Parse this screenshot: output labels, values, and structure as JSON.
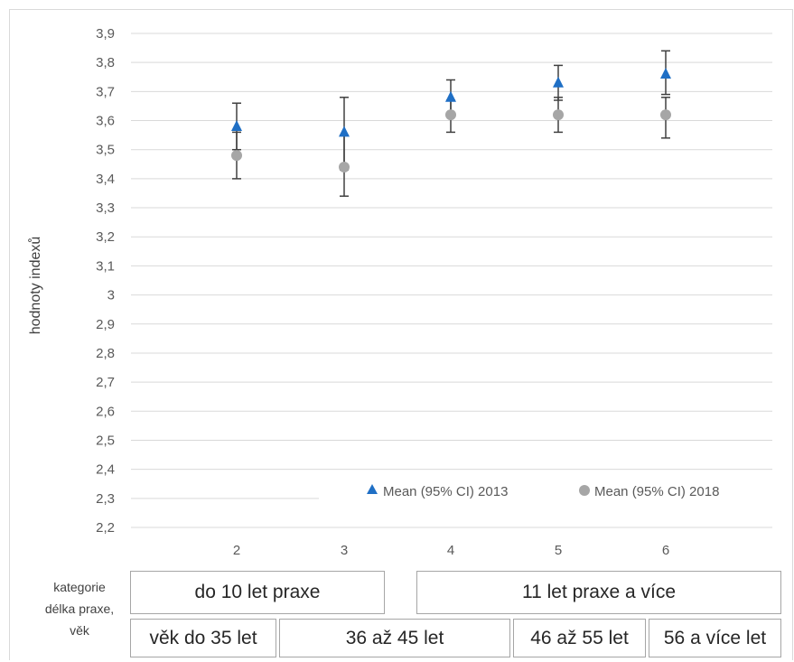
{
  "chart_data": {
    "type": "scatter",
    "ylabel": "hodnoty indexů",
    "ylim": [
      2.2,
      3.9
    ],
    "yticks": [
      "3,9",
      "3,8",
      "3,7",
      "3,6",
      "3,5",
      "3,4",
      "3,3",
      "3,2",
      "3,1",
      "3",
      "2,9",
      "2,8",
      "2,7",
      "2,6",
      "2,5",
      "2,4",
      "2,3",
      "2,2"
    ],
    "x": [
      2,
      3,
      4,
      5,
      6
    ],
    "xticks": [
      "2",
      "3",
      "4",
      "5",
      "6"
    ],
    "grid": true,
    "legend_position": "bottom-right",
    "series": [
      {
        "name": "Mean (95% CI) 2013",
        "marker": "triangle",
        "color": "#1f6fc5",
        "values": [
          3.58,
          3.56,
          3.68,
          3.73,
          3.76
        ],
        "ci_low": [
          3.5,
          3.43,
          3.62,
          3.67,
          3.69
        ],
        "ci_high": [
          3.66,
          3.68,
          3.74,
          3.79,
          3.84
        ]
      },
      {
        "name": "Mean (95% CI) 2018",
        "marker": "circle",
        "color": "#a6a6a6",
        "values": [
          3.48,
          3.44,
          3.62,
          3.62,
          3.62
        ],
        "ci_low": [
          3.4,
          3.34,
          3.56,
          3.56,
          3.54
        ],
        "ci_high": [
          3.56,
          3.55,
          3.67,
          3.68,
          3.68
        ]
      }
    ]
  },
  "categories": {
    "label_lines": [
      "kategorie",
      "délka praxe,",
      "věk"
    ],
    "experience": [
      "do 10 let praxe",
      "11 let praxe a více"
    ],
    "age": [
      "věk do 35 let",
      "36 až 45 let",
      "46 až 55 let",
      "56 a více let"
    ]
  }
}
